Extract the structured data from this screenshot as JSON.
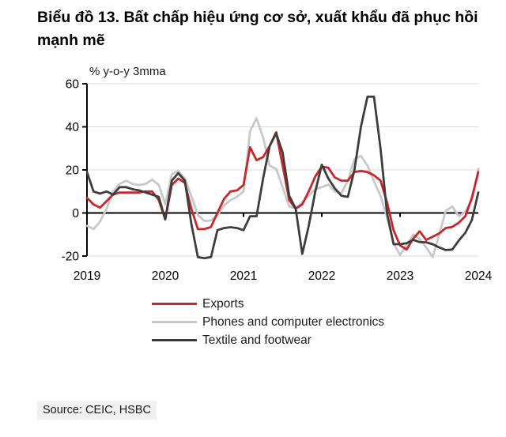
{
  "title": "Biểu đồ 13. Bất chấp hiệu ứng cơ sở, xuất khẩu đã phục hồi mạnh mẽ",
  "source": "Source: CEIC, HSBC",
  "colors": {
    "exports_red": "#c8252c",
    "phones_gray": "#c8c8c8",
    "textile_dark": "#3d3d3d",
    "gridline": "#d9d9d9",
    "axis": "#000000",
    "source_bg": "#f0f0f0"
  },
  "chart_data": {
    "type": "line",
    "title": "Biểu đồ 13. Bất chấp hiệu ứng cơ sở, xuất khẩu đã phục hồi mạnh mẽ",
    "unit_label": "% y-o-y 3mma",
    "frequency": "monthly",
    "x_start": "2019-01",
    "x_end": "2024-01",
    "x_tick_labels": [
      "2019",
      "2020",
      "2021",
      "2022",
      "2023",
      "2024"
    ],
    "ylim": [
      -20,
      60
    ],
    "y_ticks": [
      60,
      40,
      20,
      0,
      -20
    ],
    "grid": "horizontal",
    "legend_position": "bottom-left",
    "series": [
      {
        "name": "Exports",
        "color": "#c8252c",
        "values": [
          7,
          4,
          2.5,
          5.5,
          8.5,
          9.5,
          9.5,
          9.5,
          9.5,
          10,
          10,
          6,
          -3,
          13,
          16,
          14,
          2,
          -7.5,
          -7.5,
          -6.5,
          0,
          6.5,
          10,
          10.5,
          13,
          30.5,
          24.5,
          26,
          31,
          37.5,
          22,
          6,
          2,
          4,
          10,
          17,
          21.5,
          21,
          16.5,
          15,
          15,
          19,
          19.5,
          19,
          17.5,
          15,
          5,
          -8,
          -15,
          -17,
          -12,
          -8.5,
          -12.5,
          -11,
          -9.5,
          -7,
          -6.5,
          -4.5,
          -1.5,
          7,
          19
        ]
      },
      {
        "name": "Phones and computer electronics",
        "color": "#c8c8c8",
        "values": [
          -6,
          -7.5,
          -4,
          2,
          10,
          13.5,
          15,
          13.5,
          13,
          13.5,
          15.5,
          13,
          4,
          18,
          19.5,
          16,
          8,
          -1,
          -3.7,
          -3.5,
          -1,
          3.5,
          6,
          7.5,
          10,
          38,
          44,
          35,
          22,
          20.5,
          12,
          3,
          2,
          5,
          8,
          11,
          12,
          13.2,
          10,
          9.2,
          15,
          25,
          26.5,
          22,
          14.7,
          8,
          -2,
          -14,
          -19.5,
          -15,
          -10,
          -12,
          -16,
          -20.5,
          -10,
          1,
          3,
          -1.5,
          0.5,
          6,
          20.5
        ]
      },
      {
        "name": "Textile and footwear",
        "color": "#3d3d3d",
        "values": [
          19,
          10,
          9,
          10,
          8.5,
          12,
          12,
          11,
          10.5,
          9.5,
          8.5,
          7.5,
          -3,
          15,
          18.5,
          15,
          -5,
          -20.5,
          -21,
          -20.5,
          -8,
          -7,
          -6.6,
          -7,
          -8,
          -1.5,
          -1.5,
          16,
          31,
          37,
          28,
          8,
          2,
          -19,
          -6,
          10,
          22.4,
          16,
          11.4,
          8,
          7.5,
          20,
          40,
          54,
          54,
          30,
          0,
          -14.5,
          -14.5,
          -14,
          -12.5,
          -13.5,
          -13.6,
          -14.5,
          -16,
          -17.2,
          -17,
          -12.8,
          -9.2,
          -3.3,
          9.5
        ]
      }
    ]
  }
}
